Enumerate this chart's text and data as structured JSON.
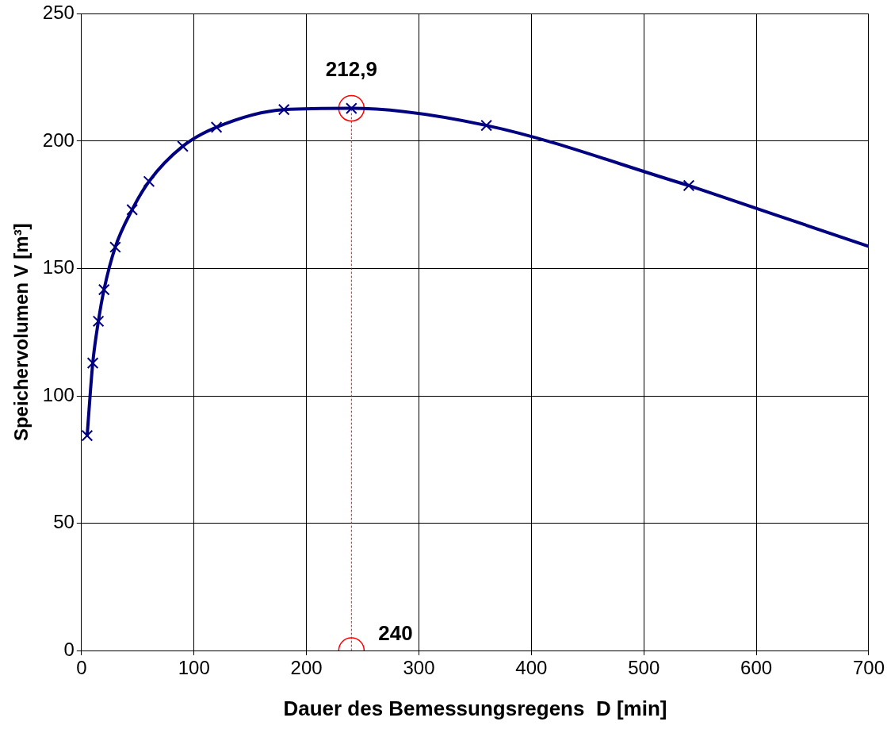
{
  "chart_data": {
    "type": "line",
    "xlabel": "Dauer des Bemessungsregens  D [min]",
    "ylabel": "Speichervolumen V [m³]",
    "xlim": [
      0,
      700
    ],
    "xticks": [
      0,
      100,
      200,
      300,
      400,
      500,
      600,
      700
    ],
    "ylim": [
      0,
      250
    ],
    "yticks": [
      0,
      50,
      100,
      150,
      200,
      250
    ],
    "grid": true,
    "legend": false,
    "series": [
      {
        "color": "#000080",
        "marker": "cross",
        "line_style": "solid",
        "x": [
          5,
          10,
          15,
          20,
          30,
          45,
          60,
          90,
          120,
          180,
          240,
          360,
          540
        ],
        "values": [
          84.4,
          112.9,
          129.3,
          141.7,
          158.4,
          173.1,
          184.2,
          198,
          205.5,
          212.4,
          212.9,
          206.2,
          182.6
        ]
      },
      {
        "color": "#000080",
        "marker": "none",
        "line_style": "solid",
        "x": [
          540,
          700
        ],
        "values": [
          182.6,
          158.7
        ]
      },
      {
        "color": "#ff0000",
        "marker": "circle",
        "line_style": "dotted",
        "x": [
          240,
          240
        ],
        "values": [
          0,
          212.9
        ]
      }
    ],
    "annotations": [
      {
        "text": "212,9",
        "x": 240,
        "y": 212.9
      },
      {
        "text": "240",
        "x": 240,
        "y": 0
      }
    ]
  }
}
